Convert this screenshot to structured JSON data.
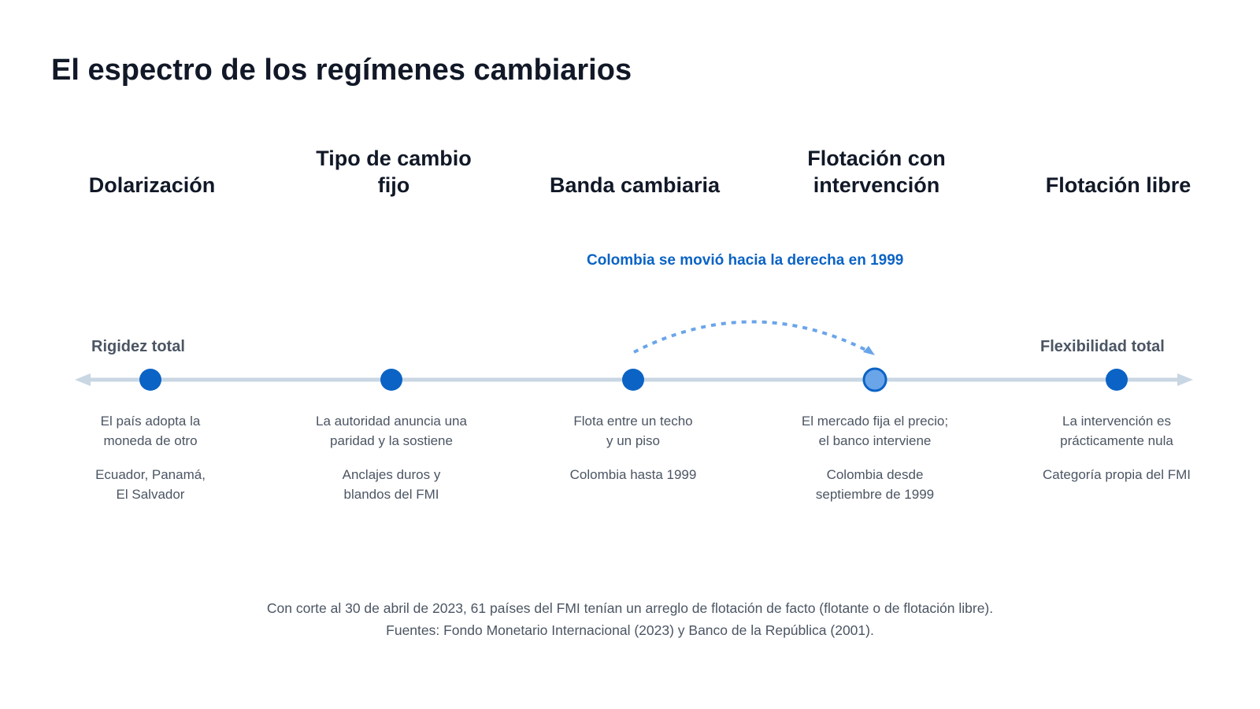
{
  "title": "El espectro de los regímenes cambiarios",
  "annotation": "Colombia se movió hacia la derecha en 1999",
  "ends": {
    "left": "Rigidez total",
    "right": "Flexibilidad total"
  },
  "regimes": [
    {
      "heading": [
        "Dolarización"
      ],
      "desc": [
        "El país adopta la",
        "moneda de otro"
      ],
      "example": [
        "Ecuador, Panamá,",
        "El Salvador"
      ]
    },
    {
      "heading": [
        "Tipo de cambio",
        "fijo"
      ],
      "desc": [
        "La autoridad anuncia una",
        "paridad y la sostiene"
      ],
      "example": [
        "Anclajes duros y",
        "blandos del FMI"
      ]
    },
    {
      "heading": [
        "Banda cambiaria"
      ],
      "desc": [
        "Flota entre un techo",
        "y un piso"
      ],
      "example": [
        "Colombia hasta 1999"
      ]
    },
    {
      "heading": [
        "Flotación con",
        "intervención"
      ],
      "desc": [
        "El mercado fija el precio;",
        "el banco interviene"
      ],
      "example": [
        "Colombia desde",
        "septiembre de 1999"
      ]
    },
    {
      "heading": [
        "Flotación libre"
      ],
      "desc": [
        "La intervención es",
        "prácticamente nula"
      ],
      "example": [
        "Categoría propia del FMI"
      ]
    }
  ],
  "footer": {
    "line1": "Con corte al 30 de abril de 2023, 61 países del FMI tenían un arreglo de flotación de facto (flotante o de flotación libre).",
    "line2": "Fuentes: Fondo Monetario Internacional (2023) y Banco de la República (2001)."
  },
  "colors": {
    "dot": "#0b63c5",
    "dot_highlight": "#6aa5ea",
    "line": "#c9d6e3",
    "arc": "#6aa5ea"
  }
}
